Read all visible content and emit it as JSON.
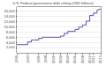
{
  "chart_data": {
    "type": "line",
    "title": "U.S. Federal government debt ceiling (USD billions)",
    "x": [
      1990,
      1993,
      1993,
      1994,
      1994,
      1996,
      1996,
      1997,
      1997,
      2002,
      2002,
      2003,
      2003,
      2004,
      2004,
      2006,
      2006,
      2007,
      2007,
      2008,
      2008,
      2009,
      2009,
      2010,
      2010,
      2011,
      2011,
      2012,
      2012,
      2013
    ],
    "values": [
      3123,
      3123,
      4145,
      4145,
      4900,
      4900,
      5500,
      5500,
      5950,
      5950,
      6400,
      6400,
      7384,
      7384,
      8184,
      8184,
      8965,
      8965,
      9815,
      9815,
      10615,
      10615,
      12104,
      12104,
      14294,
      14294,
      15194,
      15194,
      16394,
      16699
    ],
    "color": "#5555aa",
    "xlim": [
      1990,
      2013
    ],
    "ylim": [
      0,
      17500
    ],
    "xticks": [
      1990,
      1993,
      1996,
      1998,
      2000,
      2002,
      2004,
      2006,
      2008,
      2010,
      2011,
      2013
    ],
    "yticks": [
      {
        "value": 2000,
        "label": "2,000"
      },
      {
        "value": 4000,
        "label": "4,000"
      },
      {
        "value": 6000,
        "label": "6,000"
      },
      {
        "value": 8000,
        "label": "8,000"
      },
      {
        "value": 10000,
        "label": "10,000"
      },
      {
        "value": 12000,
        "label": "12,000"
      },
      {
        "value": 14000,
        "label": "14,000"
      },
      {
        "value": 16000,
        "label": "16,000"
      }
    ],
    "grid": true
  }
}
